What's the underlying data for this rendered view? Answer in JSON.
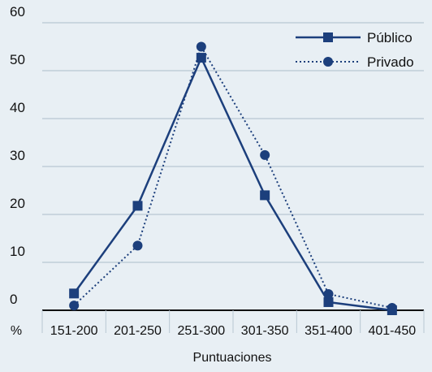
{
  "chart_data": {
    "type": "line",
    "categories": [
      "151-200",
      "201-250",
      "251-300",
      "301-350",
      "351-400",
      "401-450"
    ],
    "series": [
      {
        "name": "Público",
        "values": [
          3.5,
          21.8,
          52.7,
          24.0,
          1.7,
          0.0
        ],
        "line_style": "solid",
        "marker": "square",
        "color": "#1c3f7c"
      },
      {
        "name": "Privado",
        "values": [
          1.0,
          13.5,
          55.0,
          32.4,
          3.4,
          0.5
        ],
        "line_style": "dotted",
        "marker": "circle",
        "color": "#1c3f7c"
      }
    ],
    "ylim": [
      0,
      60
    ],
    "yticks": [
      "0",
      "10",
      "20",
      "30",
      "40",
      "50",
      "60"
    ],
    "y_unit_label": "%",
    "xlabel": "Puntuaciones",
    "grid": "horizontal",
    "legend_position": "top-right",
    "colors": {
      "background": "#e8eff4",
      "grid": "#b9c7d2",
      "series": "#1c3f7c"
    }
  }
}
